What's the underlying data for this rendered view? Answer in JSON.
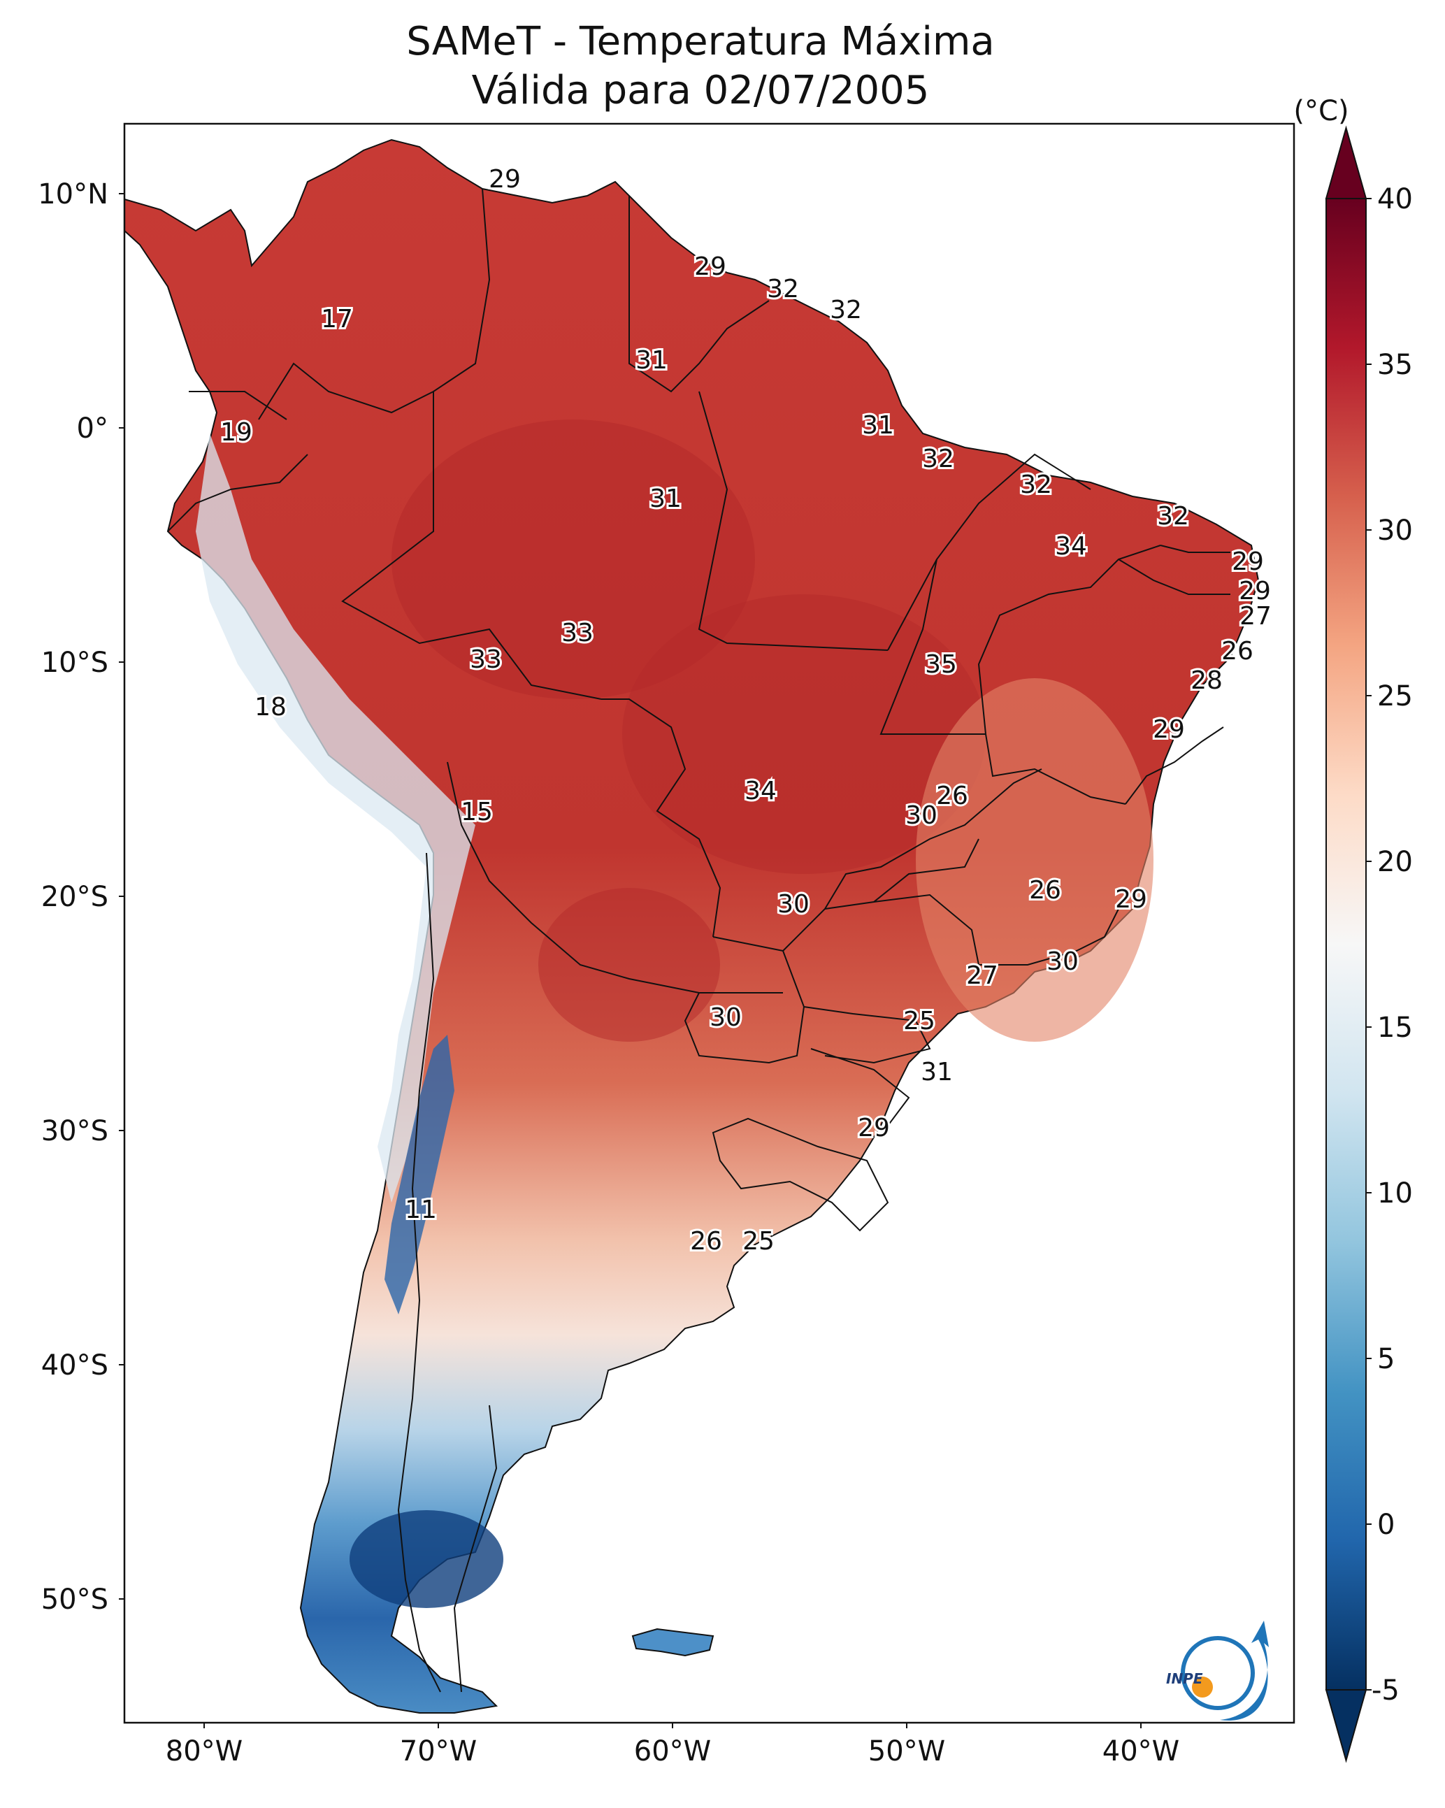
{
  "title_line1": "SAMeT - Temperatura Máxima",
  "title_line2": "Válida para 02/07/2005",
  "colorbar": {
    "unit": "(°C)",
    "ticks": [
      "40",
      "35",
      "30",
      "25",
      "20",
      "15",
      "10",
      "5",
      "0",
      "-5"
    ],
    "stops": [
      "#053061",
      "#2166ac",
      "#4393c3",
      "#92c5de",
      "#d1e5f0",
      "#f7f7f7",
      "#fddbc7",
      "#f4a582",
      "#d6604d",
      "#b2182b",
      "#67001f"
    ]
  },
  "lat_labels": [
    "10°N",
    "0°",
    "10°S",
    "20°S",
    "30°S",
    "40°S",
    "50°S"
  ],
  "lon_labels": [
    "80°W",
    "70°W",
    "60°W",
    "50°W",
    "40°W"
  ],
  "logo_text": "INPE",
  "colors": {
    "ocean": "#ffffff",
    "warm": "#c8403a",
    "hot": "#b2182b",
    "mild": "#e8836b",
    "cool": "#f6d2c2",
    "cold": "#4f90c5",
    "verycold": "#1f5c9e"
  },
  "stations": [
    {
      "id": "s1",
      "value": "29"
    },
    {
      "id": "s2",
      "value": "17"
    },
    {
      "id": "s3",
      "value": "29"
    },
    {
      "id": "s4",
      "value": "32"
    },
    {
      "id": "s5",
      "value": "32"
    },
    {
      "id": "s6",
      "value": "31"
    },
    {
      "id": "s7",
      "value": "19"
    },
    {
      "id": "s8",
      "value": "31"
    },
    {
      "id": "s9",
      "value": "32"
    },
    {
      "id": "s10",
      "value": "31"
    },
    {
      "id": "s11",
      "value": "32"
    },
    {
      "id": "s12",
      "value": "32"
    },
    {
      "id": "s13",
      "value": "34"
    },
    {
      "id": "s14",
      "value": "29"
    },
    {
      "id": "s15",
      "value": "29"
    },
    {
      "id": "s16",
      "value": "27"
    },
    {
      "id": "s17",
      "value": "33"
    },
    {
      "id": "s18",
      "value": "33"
    },
    {
      "id": "s19",
      "value": "35"
    },
    {
      "id": "s20",
      "value": "26"
    },
    {
      "id": "s21",
      "value": "28"
    },
    {
      "id": "s22",
      "value": "18"
    },
    {
      "id": "s23",
      "value": "29"
    },
    {
      "id": "s24",
      "value": "15"
    },
    {
      "id": "s25",
      "value": "34"
    },
    {
      "id": "s26",
      "value": "26"
    },
    {
      "id": "s27",
      "value": "30"
    },
    {
      "id": "s28",
      "value": "26"
    },
    {
      "id": "s29",
      "value": "29"
    },
    {
      "id": "s30",
      "value": "30"
    },
    {
      "id": "s31",
      "value": "30"
    },
    {
      "id": "s32",
      "value": "27"
    },
    {
      "id": "s33",
      "value": "30"
    },
    {
      "id": "s34",
      "value": "25"
    },
    {
      "id": "s35",
      "value": "31"
    },
    {
      "id": "s36",
      "value": "29"
    },
    {
      "id": "s37",
      "value": "11"
    },
    {
      "id": "s38",
      "value": "26"
    },
    {
      "id": "s39",
      "value": "25"
    }
  ]
}
